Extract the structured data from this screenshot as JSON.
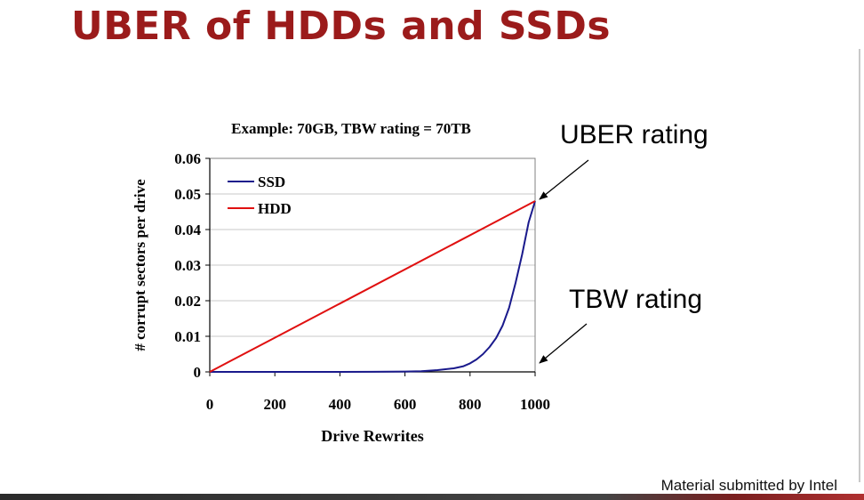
{
  "slide": {
    "title": "UBER of HDDs and SSDs",
    "footer": "Material submitted by Intel"
  },
  "callouts": {
    "uber": "UBER rating",
    "tbw": "TBW rating"
  },
  "colors": {
    "title": "#9b1b1b",
    "ssd": "#1a1a8c",
    "hdd": "#e01010",
    "grid": "#c8c8c8"
  },
  "chart_data": {
    "type": "line",
    "title": "Example: 70GB, TBW rating = 70TB",
    "xlabel": "Drive Rewrites",
    "ylabel": "# corrupt sectors per drive",
    "xlim": [
      0,
      1000
    ],
    "ylim": [
      0,
      0.06
    ],
    "xticks": [
      0,
      200,
      400,
      600,
      800,
      1000
    ],
    "yticks": [
      0,
      0.01,
      0.02,
      0.03,
      0.04,
      0.05,
      0.06
    ],
    "xtick_labels": [
      "0",
      "200",
      "400",
      "600",
      "800",
      "1000"
    ],
    "ytick_labels": [
      "0",
      "0.01",
      "0.02",
      "0.03",
      "0.04",
      "0.05",
      "0.06"
    ],
    "grid": true,
    "legend_position": "top-left",
    "series": [
      {
        "name": "SSD",
        "color": "#1a1a8c",
        "x": [
          0,
          100,
          200,
          300,
          400,
          500,
          600,
          650,
          700,
          750,
          780,
          800,
          820,
          840,
          860,
          880,
          900,
          920,
          940,
          960,
          980,
          1000
        ],
        "y": [
          0,
          0,
          0,
          0,
          0,
          3e-05,
          0.0001,
          0.0002,
          0.0005,
          0.001,
          0.0016,
          0.0024,
          0.0035,
          0.005,
          0.007,
          0.0095,
          0.013,
          0.018,
          0.025,
          0.033,
          0.042,
          0.048
        ]
      },
      {
        "name": "HDD",
        "color": "#e01010",
        "x": [
          0,
          1000
        ],
        "y": [
          0,
          0.048
        ]
      }
    ]
  }
}
